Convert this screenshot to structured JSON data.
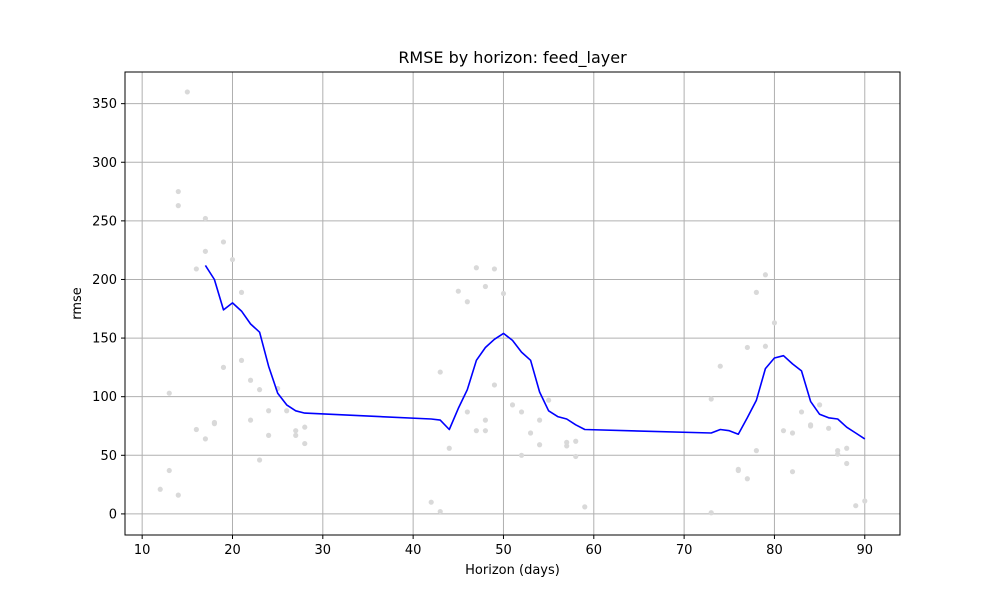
{
  "chart_data": {
    "type": "line",
    "title": "RMSE by horizon: feed_layer",
    "xlabel": "Horizon (days)",
    "ylabel": "rmse",
    "xlim": [
      8.1,
      93.9
    ],
    "ylim": [
      -18,
      377
    ],
    "xticks": [
      10,
      20,
      30,
      40,
      50,
      60,
      70,
      80,
      90
    ],
    "yticks": [
      0,
      50,
      100,
      150,
      200,
      250,
      300,
      350
    ],
    "grid": true,
    "colors": {
      "line": "#0000ff",
      "points": "#d9d9d9"
    },
    "series": [
      {
        "kind": "scatter",
        "points": [
          [
            12,
            21
          ],
          [
            13,
            103
          ],
          [
            13,
            37
          ],
          [
            14,
            275
          ],
          [
            14,
            263
          ],
          [
            14,
            16
          ],
          [
            15,
            360
          ],
          [
            16,
            72
          ],
          [
            16,
            209
          ],
          [
            17,
            252
          ],
          [
            17,
            224
          ],
          [
            17,
            64
          ],
          [
            18,
            78
          ],
          [
            18,
            77
          ],
          [
            19,
            232
          ],
          [
            19,
            125
          ],
          [
            20,
            217
          ],
          [
            21,
            189
          ],
          [
            21,
            131
          ],
          [
            22,
            114
          ],
          [
            22,
            80
          ],
          [
            23,
            106
          ],
          [
            23,
            46
          ],
          [
            24,
            88
          ],
          [
            24,
            67
          ],
          [
            25,
            107
          ],
          [
            26,
            88
          ],
          [
            27,
            71
          ],
          [
            27,
            67
          ],
          [
            28,
            74
          ],
          [
            28,
            60
          ],
          [
            42,
            10
          ],
          [
            43,
            121
          ],
          [
            43,
            2
          ],
          [
            44,
            56
          ],
          [
            45,
            190
          ],
          [
            46,
            181
          ],
          [
            46,
            87
          ],
          [
            47,
            210
          ],
          [
            47,
            71
          ],
          [
            48,
            194
          ],
          [
            48,
            80
          ],
          [
            48,
            71
          ],
          [
            49,
            209
          ],
          [
            49,
            110
          ],
          [
            50,
            188
          ],
          [
            51,
            93
          ],
          [
            52,
            87
          ],
          [
            52,
            50
          ],
          [
            53,
            69
          ],
          [
            54,
            80
          ],
          [
            54,
            59
          ],
          [
            55,
            97
          ],
          [
            57,
            61
          ],
          [
            57,
            58
          ],
          [
            58,
            62
          ],
          [
            58,
            49
          ],
          [
            59,
            6
          ],
          [
            73,
            98
          ],
          [
            73,
            1
          ],
          [
            74,
            126
          ],
          [
            76,
            38
          ],
          [
            76,
            37
          ],
          [
            77,
            142
          ],
          [
            77,
            30
          ],
          [
            78,
            189
          ],
          [
            78,
            54
          ],
          [
            79,
            204
          ],
          [
            79,
            143
          ],
          [
            80,
            163
          ],
          [
            81,
            71
          ],
          [
            82,
            69
          ],
          [
            82,
            36
          ],
          [
            83,
            87
          ],
          [
            84,
            76
          ],
          [
            84,
            75
          ],
          [
            85,
            93
          ],
          [
            86,
            73
          ],
          [
            87,
            54
          ],
          [
            87,
            51
          ],
          [
            88,
            56
          ],
          [
            88,
            43
          ],
          [
            89,
            7
          ],
          [
            90,
            11
          ]
        ]
      },
      {
        "kind": "line",
        "points": [
          [
            17,
            212
          ],
          [
            18,
            200
          ],
          [
            19,
            174
          ],
          [
            20,
            180
          ],
          [
            21,
            173
          ],
          [
            22,
            162
          ],
          [
            23,
            155
          ],
          [
            24,
            126
          ],
          [
            25,
            103
          ],
          [
            26,
            93
          ],
          [
            27,
            88
          ],
          [
            28,
            86
          ],
          [
            42,
            81
          ],
          [
            43,
            80
          ],
          [
            44,
            72
          ],
          [
            45,
            90
          ],
          [
            46,
            106
          ],
          [
            47,
            131
          ],
          [
            48,
            142
          ],
          [
            49,
            149
          ],
          [
            50,
            154
          ],
          [
            51,
            148
          ],
          [
            52,
            138
          ],
          [
            53,
            131
          ],
          [
            54,
            104
          ],
          [
            55,
            88
          ],
          [
            56,
            83
          ],
          [
            57,
            81
          ],
          [
            58,
            76
          ],
          [
            59,
            72
          ],
          [
            73,
            69
          ],
          [
            74,
            72
          ],
          [
            75,
            71
          ],
          [
            76,
            68
          ],
          [
            77,
            82
          ],
          [
            78,
            97
          ],
          [
            79,
            124
          ],
          [
            80,
            133
          ],
          [
            81,
            135
          ],
          [
            82,
            128
          ],
          [
            83,
            122
          ],
          [
            84,
            96
          ],
          [
            85,
            85
          ],
          [
            86,
            82
          ],
          [
            87,
            81
          ],
          [
            88,
            74
          ],
          [
            89,
            69
          ],
          [
            90,
            64
          ]
        ]
      }
    ]
  }
}
